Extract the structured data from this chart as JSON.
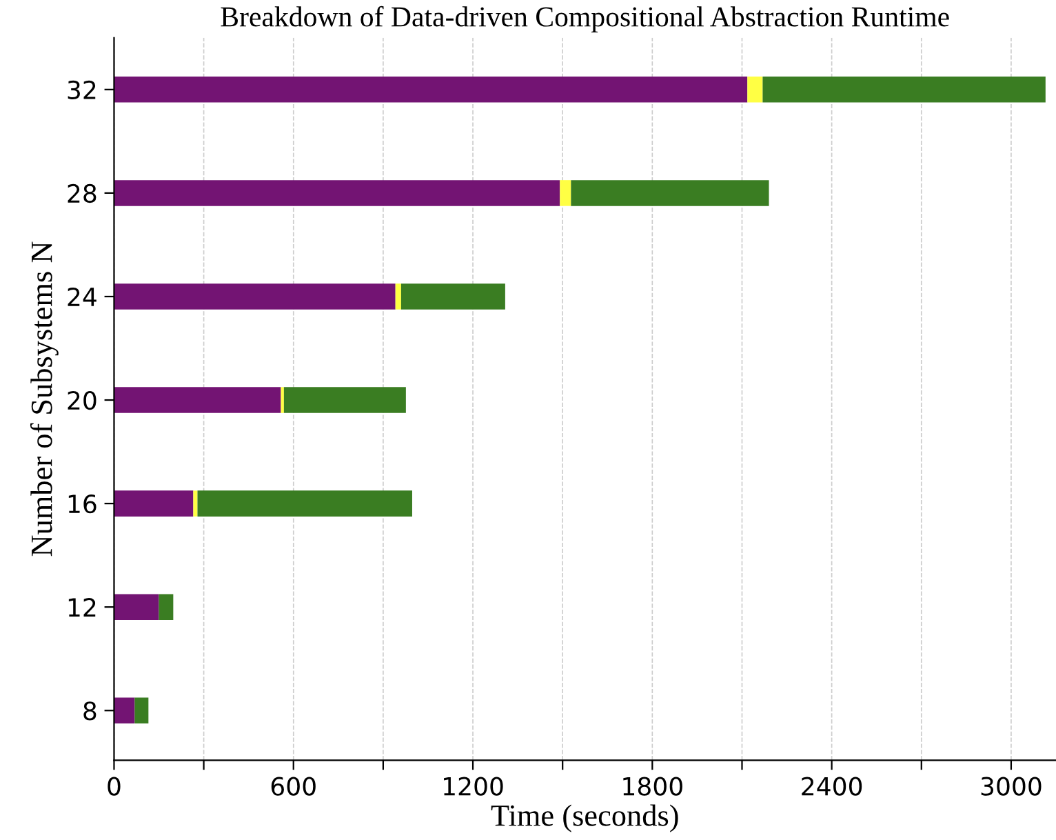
{
  "chart_data": {
    "type": "bar",
    "orientation": "horizontal",
    "stacked": true,
    "title": "Breakdown of Data-driven Compositional Abstraction Runtime",
    "xlabel": "Time (seconds)",
    "ylabel": "Number of Subsystems N",
    "categories": [
      "32",
      "28",
      "24",
      "20",
      "16",
      "12",
      "8"
    ],
    "series": [
      {
        "color": "#731473",
        "values": [
          2118,
          1491,
          941,
          558,
          265,
          150,
          69
        ]
      },
      {
        "color": "#ffff44",
        "values": [
          51,
          37,
          19,
          10,
          14,
          null,
          null
        ]
      },
      {
        "color": "#3a7d22",
        "values": [
          946,
          662,
          348,
          408,
          718,
          48,
          46
        ]
      }
    ],
    "xlim": [
      0,
      3150
    ],
    "xticks": [
      0,
      {
        "value": 300,
        "label": null
      },
      600,
      {
        "value": 900,
        "label": null
      },
      1200,
      {
        "value": 1500,
        "label": null
      },
      1800,
      {
        "value": 2100,
        "label": null
      },
      2400,
      {
        "value": 2700,
        "label": null
      },
      3000
    ],
    "grid": "x",
    "legend": false
  }
}
